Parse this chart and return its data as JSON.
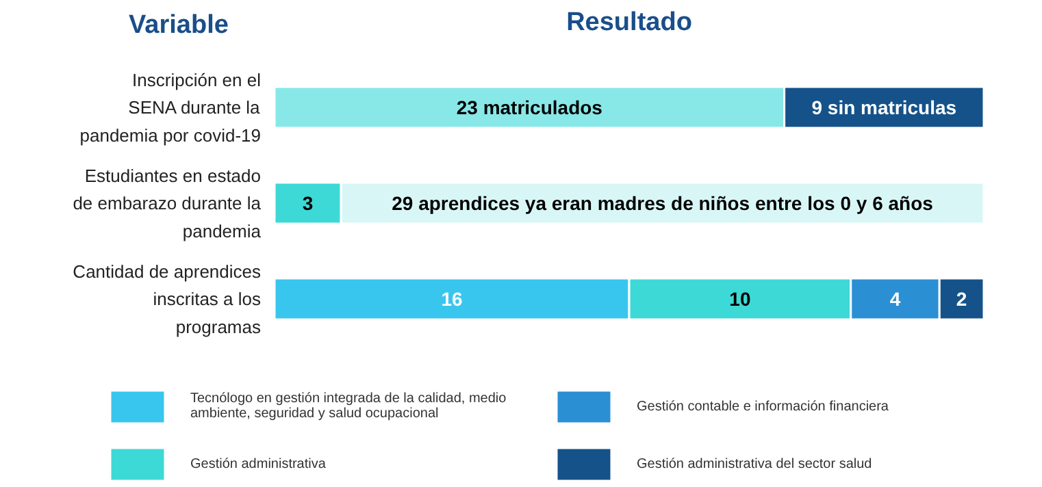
{
  "chart_data": {
    "type": "bar",
    "orientation": "horizontal",
    "stacked": true,
    "title": "Resultado",
    "ylabel": "Variable",
    "tick_labels": "y",
    "grid": false,
    "legend": "bottom",
    "categories": [
      "Inscripción en el  SENA durante la pandemia por covid-19",
      "Estudiantes en estado de embarazo durante la pandemia",
      "Cantidad de aprendices inscritas a los programas"
    ],
    "series": [
      {
        "color": "#88e8e8",
        "values": [
          23,
          null,
          null
        ],
        "value_labels": [
          "23 matriculados",
          null,
          null
        ]
      },
      {
        "color": "#155289",
        "values": [
          9,
          null,
          null
        ],
        "value_labels": [
          "9 sin matriculas",
          null,
          null
        ]
      },
      {
        "color": "#3dd9d6",
        "values": [
          null,
          3,
          null
        ],
        "value_labels": [
          null,
          "3",
          null
        ]
      },
      {
        "color": "#d8f6f6",
        "values": [
          null,
          29,
          null
        ],
        "value_labels": [
          null,
          "29 aprendices ya eran madres de niños entre los 0 y 6 años",
          null
        ]
      },
      {
        "name": "Tecnólogo en gestión integrada de la calidad, medio ambiente, seguridad y salud ocupacional",
        "color": "#38c6ee",
        "values": [
          null,
          null,
          16
        ],
        "value_labels": [
          null,
          null,
          "16"
        ]
      },
      {
        "name": "Gestión administrativa",
        "color": "#3dd9d6",
        "values": [
          null,
          null,
          10
        ],
        "value_labels": [
          null,
          null,
          "10"
        ]
      },
      {
        "name": "Gestión contable e información financiera",
        "color": "#2b8fd4",
        "values": [
          null,
          null,
          4
        ],
        "value_labels": [
          null,
          null,
          "4"
        ]
      },
      {
        "name": "Gestión administrativa del sector salud",
        "color": "#155289",
        "values": [
          null,
          null,
          2
        ],
        "value_labels": [
          null,
          null,
          "2"
        ]
      }
    ]
  }
}
